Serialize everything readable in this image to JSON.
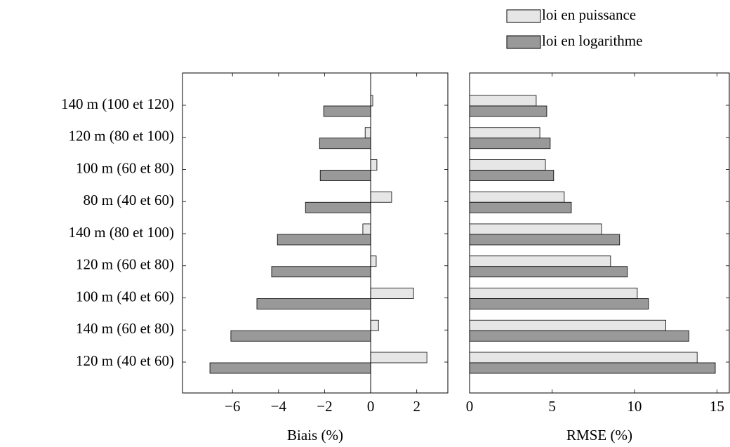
{
  "chart_data": [
    {
      "type": "hbar",
      "categories": [
        "140 m (100 et 120)",
        "120 m (80 et 100)",
        "100 m (60 et 80)",
        "80 m (40 et 60)",
        "140 m (80 et 100)",
        "120 m (60 et 80)",
        "100 m (40 et 60)",
        "140 m (60 et 80)",
        "120 m (40 et 60)"
      ],
      "series": [
        {
          "name": "loi en puissance",
          "color": "#e6e6e6",
          "values": [
            0.09,
            -0.24,
            0.27,
            0.91,
            -0.34,
            0.24,
            1.86,
            0.34,
            2.44
          ]
        },
        {
          "name": "loi en logarithme",
          "color": "#999999",
          "values": [
            -2.04,
            -2.22,
            -2.19,
            -2.83,
            -4.05,
            -4.3,
            -4.94,
            -6.07,
            -6.98
          ]
        }
      ],
      "xlabel": "Biais (%)",
      "xlim": [
        -8.17,
        3.35
      ],
      "xticks": [
        {
          "value": -6,
          "label": "−6"
        },
        {
          "value": -4,
          "label": "−4"
        },
        {
          "value": -2,
          "label": "−2"
        },
        0,
        2
      ]
    },
    {
      "type": "hbar",
      "series": [
        {
          "color": "#e6e6e6",
          "values": [
            4.04,
            4.26,
            4.6,
            5.74,
            8.0,
            8.55,
            10.17,
            11.9,
            13.8
          ]
        },
        {
          "color": "#999999",
          "values": [
            4.68,
            4.89,
            5.1,
            6.17,
            9.1,
            9.57,
            10.85,
            13.3,
            14.9
          ]
        }
      ],
      "xlabel": "RMSE (%)",
      "xlim": [
        0,
        15.75
      ],
      "xticks": [
        0,
        5,
        10,
        15
      ]
    }
  ]
}
